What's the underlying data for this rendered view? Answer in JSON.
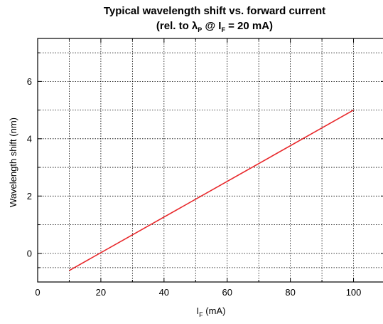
{
  "chart_data": {
    "type": "line",
    "title": {
      "line1": "Typical wavelength shift vs. forward current",
      "line2_prefix": "(rel. to λ",
      "line2_sub1": "P",
      "line2_mid": " @ I",
      "line2_sub2": "F",
      "line2_suffix": " = 20 mA)"
    },
    "xlabel": {
      "main": "I",
      "sub": "F",
      "rest": " (mA)"
    },
    "ylabel": "Wavelength shift (nm)",
    "xlim": [
      0,
      110
    ],
    "ylim": [
      -1,
      7.5
    ],
    "xticks": [
      0,
      20,
      40,
      60,
      80,
      100
    ],
    "yticks": [
      0,
      2,
      4,
      6
    ],
    "x_grid": [
      10,
      30,
      50,
      70,
      90
    ],
    "y_grid": [
      -0.5,
      1,
      3,
      5,
      7
    ],
    "grid": true,
    "series": [
      {
        "color": "#e8282b",
        "x": [
          10,
          100
        ],
        "y": [
          -0.6,
          5.0
        ]
      }
    ]
  }
}
